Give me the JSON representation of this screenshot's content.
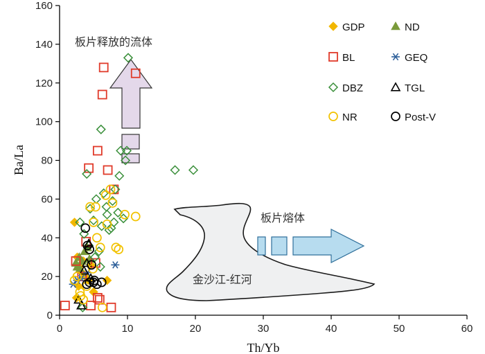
{
  "chart_data": {
    "type": "scatter",
    "title": "",
    "xlabel": "Th/Yb",
    "ylabel": "Ba/La",
    "xlim": [
      0,
      60
    ],
    "ylim": [
      0,
      160
    ],
    "xticks": [
      0,
      10,
      20,
      30,
      40,
      50,
      60
    ],
    "yticks": [
      0,
      20,
      40,
      60,
      80,
      100,
      120,
      140,
      160
    ],
    "legend_position": "top-right",
    "series": [
      {
        "name": "GDP",
        "marker": "diamond-filled",
        "color": "#f2b700",
        "x": [
          2.2,
          2.6,
          3.0,
          3.3,
          3.8,
          2.8,
          4.2,
          5.0,
          7.0,
          3.5,
          2.5,
          4.6
        ],
        "y": [
          48,
          30,
          25,
          22,
          20,
          15,
          18,
          12,
          18,
          28,
          9,
          26
        ]
      },
      {
        "name": "ND",
        "marker": "triangle-filled",
        "color": "#7a9a3a",
        "x": [
          2.4,
          2.9,
          3.3,
          3.7,
          4.1,
          4.4,
          3.0,
          2.6
        ],
        "y": [
          27,
          30,
          28,
          33,
          35,
          29,
          24,
          25
        ]
      },
      {
        "name": "BL",
        "marker": "square-open",
        "color": "#e03a2a",
        "x": [
          0.8,
          2.4,
          3.9,
          4.3,
          5.3,
          5.6,
          5.9,
          6.3,
          6.5,
          7.1,
          7.6,
          8.0,
          11.2,
          4.6,
          5.6,
          3.3
        ],
        "y": [
          5,
          28,
          38,
          76,
          27,
          85,
          8,
          114,
          128,
          75,
          4,
          65,
          125,
          5,
          9,
          20
        ]
      },
      {
        "name": "GEQ",
        "marker": "asterisk",
        "color": "#2d5f9a",
        "x": [
          2.0,
          2.6,
          3.2,
          4.1,
          8.2
        ],
        "y": [
          16,
          18,
          19,
          22,
          26
        ]
      },
      {
        "name": "DBZ",
        "marker": "diamond-open",
        "color": "#3a8f3a",
        "x": [
          3.0,
          3.6,
          4.0,
          4.5,
          5.0,
          5.4,
          5.8,
          6.1,
          6.5,
          6.9,
          7.3,
          7.8,
          8.2,
          8.6,
          9.0,
          9.4,
          9.7,
          9.9,
          10.1,
          4.3,
          5.2,
          6.2,
          7.0,
          7.6,
          8.0,
          8.8,
          17.0,
          19.7,
          6.0,
          3.4
        ],
        "y": [
          48,
          42,
          73,
          55,
          49,
          60,
          33,
          96,
          63,
          56,
          44,
          59,
          65,
          53,
          85,
          50,
          80,
          85,
          133,
          36,
          30,
          46,
          52,
          45,
          48,
          72,
          75,
          75,
          25,
          4
        ]
      },
      {
        "name": "TGL",
        "marker": "triangle-open",
        "color": "#000000",
        "x": [
          2.8,
          3.2,
          3.6,
          4.0,
          4.3,
          4.6
        ],
        "y": [
          8,
          5,
          23,
          27,
          37,
          19
        ]
      },
      {
        "name": "NR",
        "marker": "circle-open",
        "color": "#f2c200",
        "x": [
          2.2,
          2.6,
          3.1,
          3.5,
          4.0,
          4.5,
          5.0,
          5.5,
          6.0,
          6.3,
          7.0,
          7.5,
          7.8,
          8.3,
          8.7,
          9.6,
          11.2,
          4.9,
          6.8,
          5.3,
          3.0
        ],
        "y": [
          18,
          20,
          10,
          8,
          15,
          56,
          48,
          40,
          35,
          4,
          47,
          65,
          58,
          35,
          34,
          52,
          51,
          24,
          62,
          56,
          12
        ]
      },
      {
        "name": "Post-V",
        "marker": "circle-open",
        "color": "#000000",
        "x": [
          3.8,
          4.1,
          4.4,
          4.7,
          5.1,
          5.5,
          6.2,
          4.0,
          4.4,
          5.0
        ],
        "y": [
          45,
          36,
          34,
          26,
          18,
          16,
          17,
          16,
          17,
          17
        ]
      }
    ],
    "annotations": [
      {
        "text": "板片释放的流体"
      },
      {
        "text": "板片熔体"
      },
      {
        "text": "金沙江-红河"
      }
    ]
  }
}
